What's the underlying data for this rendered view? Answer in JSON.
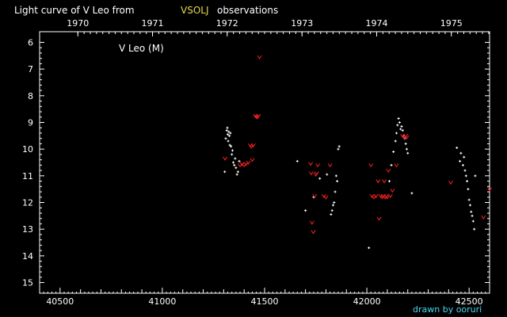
{
  "title": {
    "prefix": "Light curve of V Leo from",
    "source": "VSOLJ",
    "suffix": "observations"
  },
  "colors": {
    "background": "#000000",
    "axis": "#ffffff",
    "observation": "#ffffff",
    "upper_limit": "#ff2020",
    "source_highlight": "#e8d84a",
    "credit": "#48d8f0"
  },
  "credit": "drawn by ooruri",
  "chart_data": {
    "type": "scatter",
    "title": "Light curve of V Leo from VSOLJ observations",
    "annotation": "V Leo (M)",
    "xlabel": "",
    "ylabel": "",
    "x_ticks": [
      40500,
      41000,
      41500,
      42000,
      42500
    ],
    "x_tick_labels": [
      "40500",
      "41000",
      "41500",
      "42000",
      "42500"
    ],
    "y_ticks": [
      6,
      7,
      8,
      9,
      10,
      11,
      12,
      13,
      14,
      15
    ],
    "y_tick_labels": [
      "6",
      "7",
      "8",
      "9",
      "10",
      "11",
      "12",
      "13",
      "14",
      "15"
    ],
    "xlim": [
      40400,
      42600
    ],
    "ylim": [
      5.6,
      15.4
    ],
    "y_inverted": true,
    "grid": false,
    "top_axis": {
      "years": [
        "1970",
        "1971",
        "1972",
        "1973",
        "1974",
        "1975"
      ],
      "year_jd": [
        40587,
        40952,
        41317,
        41683,
        42048,
        42413
      ]
    },
    "series": [
      {
        "marker": "plus",
        "points": [
          [
            41305,
            10.85
          ],
          [
            41310,
            9.6
          ],
          [
            41315,
            9.3
          ],
          [
            41318,
            9.2
          ],
          [
            41320,
            9.45
          ],
          [
            41322,
            9.7
          ],
          [
            41325,
            9.35
          ],
          [
            41328,
            9.5
          ],
          [
            41330,
            9.85
          ],
          [
            41333,
            9.4
          ],
          [
            41336,
            9.9
          ],
          [
            41340,
            10.2
          ],
          [
            41343,
            10.05
          ],
          [
            41347,
            10.5
          ],
          [
            41352,
            10.6
          ],
          [
            41356,
            10.35
          ],
          [
            41360,
            10.7
          ],
          [
            41365,
            10.95
          ],
          [
            41370,
            10.85
          ],
          [
            41376,
            10.45
          ],
          [
            41660,
            10.45
          ],
          [
            41700,
            12.3
          ],
          [
            41740,
            11.8
          ],
          [
            41770,
            11.1
          ],
          [
            41805,
            10.95
          ],
          [
            41825,
            12.45
          ],
          [
            41830,
            12.3
          ],
          [
            41835,
            12.1
          ],
          [
            41840,
            12.0
          ],
          [
            41845,
            11.6
          ],
          [
            41850,
            11.0
          ],
          [
            41855,
            11.2
          ],
          [
            41860,
            10.0
          ],
          [
            41865,
            9.9
          ],
          [
            42010,
            13.7
          ],
          [
            42110,
            11.2
          ],
          [
            42120,
            10.6
          ],
          [
            42130,
            10.1
          ],
          [
            42140,
            9.7
          ],
          [
            42145,
            9.4
          ],
          [
            42150,
            9.1
          ],
          [
            42155,
            8.85
          ],
          [
            42160,
            9.0
          ],
          [
            42165,
            9.25
          ],
          [
            42170,
            9.15
          ],
          [
            42175,
            9.3
          ],
          [
            42180,
            9.5
          ],
          [
            42185,
            9.6
          ],
          [
            42190,
            9.8
          ],
          [
            42195,
            10.0
          ],
          [
            42200,
            10.15
          ],
          [
            42220,
            11.65
          ],
          [
            42440,
            9.95
          ],
          [
            42455,
            10.45
          ],
          [
            42460,
            10.15
          ],
          [
            42470,
            10.6
          ],
          [
            42475,
            10.3
          ],
          [
            42480,
            10.8
          ],
          [
            42485,
            11.0
          ],
          [
            42490,
            11.2
          ],
          [
            42495,
            11.5
          ],
          [
            42500,
            11.9
          ],
          [
            42505,
            12.1
          ],
          [
            42510,
            12.35
          ],
          [
            42515,
            12.5
          ],
          [
            42520,
            12.7
          ],
          [
            42525,
            13.0
          ],
          [
            42530,
            11.0
          ]
        ]
      },
      {
        "marker": "v",
        "points": [
          [
            41307,
            10.35
          ],
          [
            41380,
            10.6
          ],
          [
            41390,
            10.55
          ],
          [
            41400,
            10.6
          ],
          [
            41410,
            10.55
          ],
          [
            41420,
            10.5
          ],
          [
            41430,
            9.85
          ],
          [
            41435,
            9.9
          ],
          [
            41440,
            10.4
          ],
          [
            41445,
            9.85
          ],
          [
            41455,
            8.75
          ],
          [
            41460,
            8.78
          ],
          [
            41465,
            8.8
          ],
          [
            41470,
            8.75
          ],
          [
            41475,
            6.55
          ],
          [
            41725,
            10.55
          ],
          [
            41728,
            10.9
          ],
          [
            41732,
            12.75
          ],
          [
            41738,
            13.1
          ],
          [
            41745,
            11.75
          ],
          [
            41750,
            10.95
          ],
          [
            41755,
            10.9
          ],
          [
            41760,
            10.6
          ],
          [
            41790,
            11.75
          ],
          [
            41800,
            11.8
          ],
          [
            41820,
            10.6
          ],
          [
            42020,
            10.6
          ],
          [
            42025,
            11.75
          ],
          [
            42035,
            11.8
          ],
          [
            42045,
            11.75
          ],
          [
            42055,
            11.2
          ],
          [
            42060,
            12.6
          ],
          [
            42068,
            11.75
          ],
          [
            42075,
            11.8
          ],
          [
            42080,
            11.75
          ],
          [
            42085,
            11.2
          ],
          [
            42090,
            11.8
          ],
          [
            42095,
            11.75
          ],
          [
            42100,
            11.8
          ],
          [
            42105,
            10.8
          ],
          [
            42115,
            11.75
          ],
          [
            42125,
            11.55
          ],
          [
            42145,
            10.6
          ],
          [
            42175,
            9.5
          ],
          [
            42185,
            9.55
          ],
          [
            42190,
            9.5
          ],
          [
            42195,
            9.55
          ],
          [
            42410,
            11.25
          ],
          [
            42570,
            12.55
          ],
          [
            42600,
            11.5
          ]
        ]
      }
    ]
  }
}
